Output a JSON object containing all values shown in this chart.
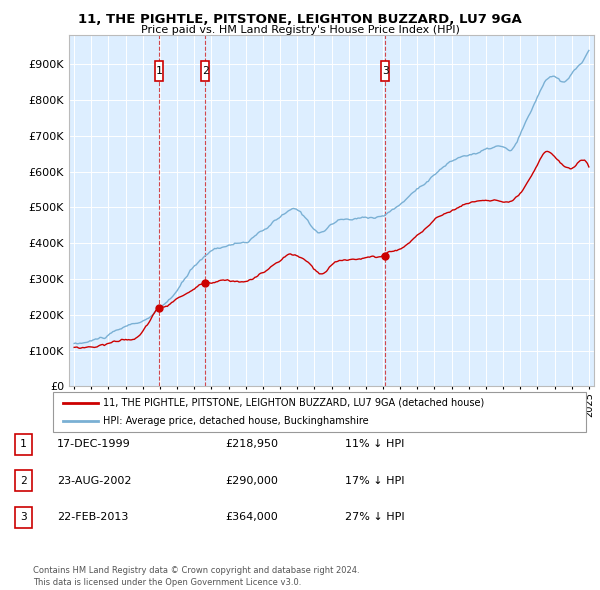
{
  "title": "11, THE PIGHTLE, PITSTONE, LEIGHTON BUZZARD, LU7 9GA",
  "subtitle": "Price paid vs. HM Land Registry's House Price Index (HPI)",
  "legend_label_red": "11, THE PIGHTLE, PITSTONE, LEIGHTON BUZZARD, LU7 9GA (detached house)",
  "legend_label_blue": "HPI: Average price, detached house, Buckinghamshire",
  "footer": "Contains HM Land Registry data © Crown copyright and database right 2024.\nThis data is licensed under the Open Government Licence v3.0.",
  "transactions": [
    {
      "num": 1,
      "date": "17-DEC-1999",
      "price": 218950,
      "pct": "11%",
      "direction": "↓",
      "year": 1999.96
    },
    {
      "num": 2,
      "date": "23-AUG-2002",
      "price": 290000,
      "pct": "17%",
      "direction": "↓",
      "year": 2002.64
    },
    {
      "num": 3,
      "date": "22-FEB-2013",
      "price": 364000,
      "pct": "27%",
      "direction": "↓",
      "year": 2013.13
    }
  ],
  "hpi_color": "#7ab0d4",
  "price_color": "#cc0000",
  "vline_color": "#cc0000",
  "background_color": "#ddeeff",
  "ylim": [
    0,
    1000000
  ],
  "xlim": [
    1994.7,
    2025.3
  ]
}
